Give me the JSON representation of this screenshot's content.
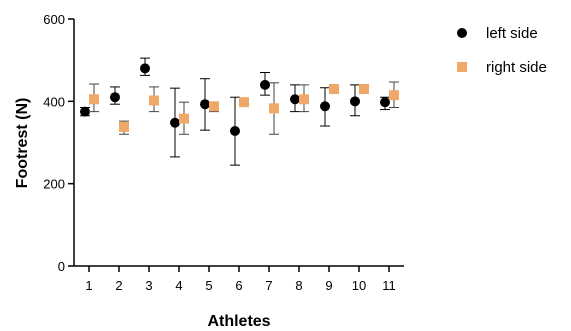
{
  "chart_data": {
    "type": "scatter",
    "xlabel": "Athletes",
    "ylabel": "Footrest (N)",
    "categories": [
      "1",
      "2",
      "3",
      "4",
      "5",
      "6",
      "7",
      "8",
      "9",
      "10",
      "11"
    ],
    "ylim": [
      0,
      600
    ],
    "yticks": [
      "0",
      "200",
      "400",
      "600"
    ],
    "grid": false,
    "legend_position": "top-right",
    "series": [
      {
        "name": "left side",
        "color": "#000000",
        "marker": "circle",
        "values": [
          375,
          410,
          480,
          348,
          393,
          328,
          440,
          405,
          388,
          400,
          398
        ],
        "err_low": [
          365,
          393,
          463,
          265,
          330,
          245,
          415,
          375,
          340,
          365,
          380
        ],
        "err_high": [
          385,
          435,
          505,
          432,
          455,
          410,
          470,
          440,
          433,
          440,
          410
        ]
      },
      {
        "name": "right side",
        "color": "#f0a868",
        "marker": "square",
        "values": [
          405,
          338,
          402,
          358,
          388,
          398,
          383,
          405,
          430,
          430,
          415
        ],
        "err_low": [
          375,
          320,
          375,
          320,
          375,
          395,
          320,
          375,
          420,
          420,
          385
        ],
        "err_high": [
          442,
          352,
          435,
          398,
          395,
          403,
          445,
          440,
          440,
          440,
          447
        ]
      }
    ]
  }
}
